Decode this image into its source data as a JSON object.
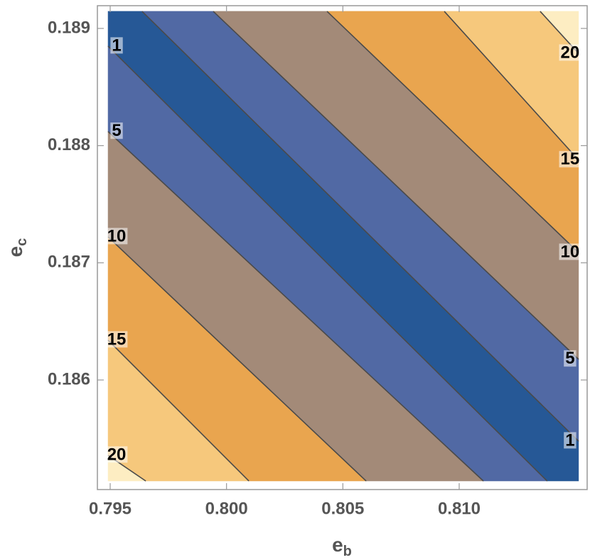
{
  "chart_data": {
    "type": "contour",
    "xlabel": {
      "text": "e",
      "subscript": "b"
    },
    "ylabel": {
      "text": "e",
      "subscript": "c"
    },
    "xlim": [
      0.79445,
      0.8155
    ],
    "ylim": [
      0.185065,
      0.189194
    ],
    "xticks": [
      0.795,
      {
        "value": 0.8,
        "label": "0.800"
      },
      0.805,
      {
        "value": 0.81,
        "label": "0.810"
      }
    ],
    "yticks": [
      0.186,
      0.187,
      0.188,
      0.189
    ],
    "domain": {
      "x": [
        0.79491,
        0.81513
      ],
      "y": [
        0.185138,
        0.189146
      ]
    },
    "contours": [
      {
        "level": 20,
        "x": [
          0.79491,
          0.79653
        ],
        "y": [
          0.185357,
          0.185138
        ]
      },
      {
        "level": 15,
        "x": [
          0.79491,
          0.80096
        ],
        "y": [
          0.18634,
          0.185138
        ]
      },
      {
        "level": 10,
        "x": [
          0.79491,
          0.806
        ],
        "y": [
          0.187221,
          0.185138
        ]
      },
      {
        "level": 5,
        "x": [
          0.79491,
          0.81104
        ],
        "y": [
          0.18812,
          0.185138
        ]
      },
      {
        "level": 1,
        "x": [
          0.79491,
          0.81378
        ],
        "y": [
          0.188848,
          0.185138
        ]
      },
      {
        "level": 1,
        "x": [
          0.79637,
          0.81513
        ],
        "y": [
          0.189146,
          0.185478
        ]
      },
      {
        "level": 5,
        "x": [
          0.79943,
          0.81513
        ],
        "y": [
          0.189146,
          0.186177
        ]
      },
      {
        "level": 10,
        "x": [
          0.80432,
          0.81513
        ],
        "y": [
          0.189146,
          0.187087
        ]
      },
      {
        "level": 15,
        "x": [
          0.80936,
          0.81513
        ],
        "y": [
          0.189146,
          0.187877
        ]
      },
      {
        "level": 20,
        "x": [
          0.81348,
          0.81513
        ],
        "y": [
          0.189146,
          0.188787
        ]
      }
    ],
    "band_colors": [
      "#fdedc2",
      "#f6c87c",
      "#e9a54f",
      "#a38a78",
      "#5169a4",
      "#265896",
      "#5169a4",
      "#a38a78",
      "#e9a54f",
      "#f6c87c",
      "#fdedc2"
    ],
    "line_color": "#4a4a4a"
  }
}
